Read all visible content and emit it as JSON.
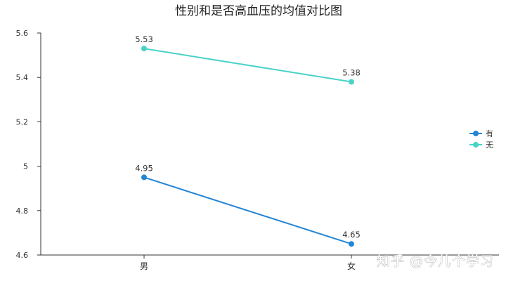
{
  "chart_data": {
    "type": "line",
    "title": "性别和是否高血压的均值对比图",
    "categories": [
      "男",
      "女"
    ],
    "series": [
      {
        "name": "有",
        "values": [
          4.95,
          4.65
        ],
        "color": "#2385d6"
      },
      {
        "name": "无",
        "values": [
          5.53,
          5.38
        ],
        "color": "#49d3c8"
      }
    ],
    "data_labels": [
      [
        "4.95",
        "4.65"
      ],
      [
        "5.53",
        "5.38"
      ]
    ],
    "ylim": [
      4.6,
      5.6
    ],
    "yticks": [
      4.6,
      4.8,
      5.0,
      5.2,
      5.4,
      5.6
    ],
    "ytick_labels": [
      "4.6",
      "4.8",
      "5",
      "5.2",
      "5.4",
      "5.6"
    ],
    "xlabel": "",
    "ylabel": "",
    "grid": false,
    "legend_position": "right"
  },
  "watermark": "知乎 @今儿个学习"
}
